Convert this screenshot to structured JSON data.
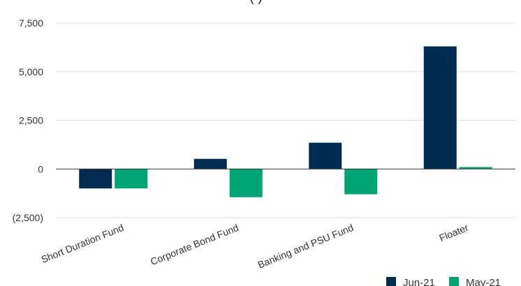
{
  "chart_data": {
    "type": "bar",
    "title": "",
    "title_visible_fragment": "( )",
    "categories": [
      "Short Duration Fund",
      "Corporate Bond Fund",
      "Banking and PSU Fund",
      "Floater"
    ],
    "series": [
      {
        "name": "Jun-21",
        "color": "#002D4F",
        "values": [
          -1000,
          520,
          1350,
          6300
        ]
      },
      {
        "name": "May-21",
        "color": "#00A374",
        "values": [
          -1000,
          -1450,
          -1300,
          100
        ]
      }
    ],
    "ylim": [
      -2500,
      7500
    ],
    "yticks": [
      7500,
      5000,
      2500,
      0,
      -2500
    ],
    "ytick_labels": [
      "7,500",
      "5,000",
      "2,500",
      "0",
      "(2,500)"
    ],
    "grid": true,
    "legend_position": "bottom-right"
  }
}
